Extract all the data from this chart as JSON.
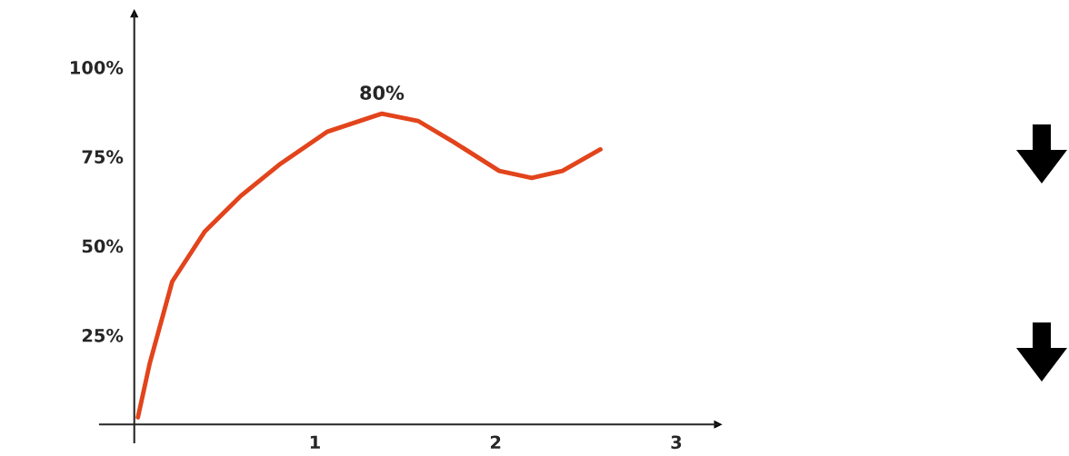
{
  "chart_data": {
    "type": "line",
    "x": [
      0.02,
      0.085,
      0.21,
      0.39,
      0.59,
      0.81,
      1.07,
      1.37,
      1.57,
      1.77,
      2.02,
      2.2,
      2.37,
      2.58
    ],
    "series": [
      {
        "color": "#e2441c",
        "values": [
          2,
          17,
          40,
          54,
          64,
          73,
          82,
          87,
          85,
          79,
          71,
          69,
          71,
          77
        ]
      }
    ],
    "xlim": [
      -0.19,
      3.23
    ],
    "ylim": [
      -5,
      115
    ],
    "xticks": [
      {
        "value": 0,
        "label": null
      },
      1,
      2,
      3
    ],
    "yticks": [
      {
        "value": 25,
        "label": "25%"
      },
      {
        "value": 50,
        "label": "50%"
      },
      {
        "value": 75,
        "label": "75%"
      },
      {
        "value": 100,
        "label": "100%"
      }
    ],
    "annotations": [
      {
        "text": "80%",
        "x": 1.37,
        "y": 87
      }
    ],
    "marker": "none",
    "line_style": "solid",
    "grid": false,
    "legend": false
  }
}
